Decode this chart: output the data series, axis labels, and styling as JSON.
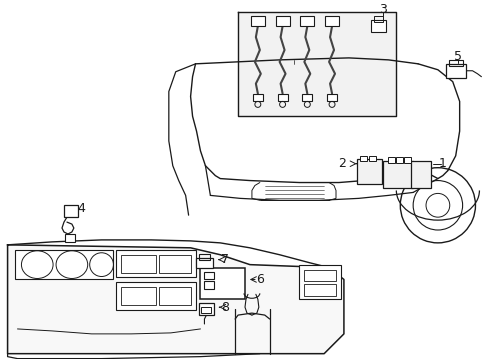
{
  "background_color": "#ffffff",
  "line_color": "#1a1a1a",
  "fill_light": "#f2f2f2",
  "figsize": [
    4.89,
    3.6
  ],
  "dpi": 100,
  "label_fs": 9
}
